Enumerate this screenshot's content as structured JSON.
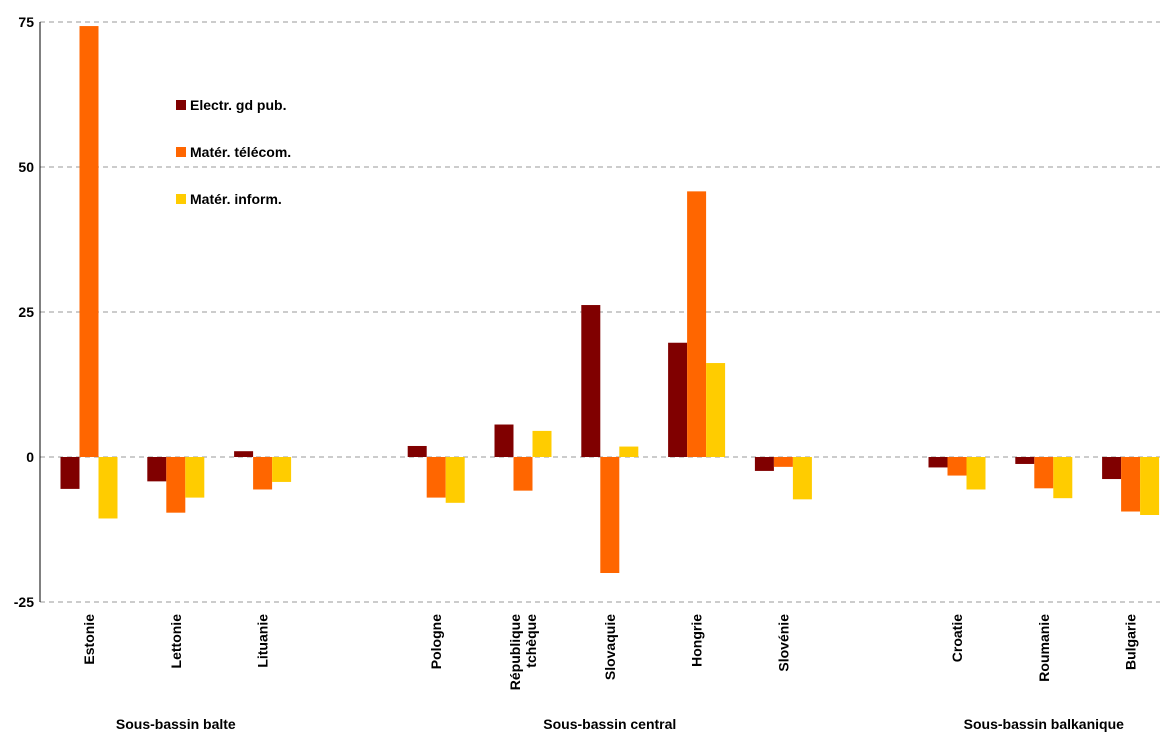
{
  "chart_data": {
    "type": "bar",
    "title": "",
    "xlabel": "",
    "ylabel": "",
    "ylim": [
      -25,
      75
    ],
    "yticks": [
      -25,
      0,
      25,
      50,
      75
    ],
    "grid": true,
    "legend_position": "top-left",
    "categories": [
      [
        "Estonie"
      ],
      [
        "Lettonie"
      ],
      [
        "Lituanie"
      ],
      [
        "Pologne"
      ],
      [
        "République",
        "tchèque"
      ],
      [
        "Slovaquie"
      ],
      [
        "Hongrie"
      ],
      [
        "Slovénie"
      ],
      [
        "Croatie"
      ],
      [
        "Roumanie"
      ],
      [
        "Bulgarie"
      ]
    ],
    "groups": [
      {
        "label": "Sous-bassin balte",
        "categories": [
          0,
          1,
          2
        ]
      },
      {
        "label": "Sous-bassin central",
        "categories": [
          3,
          4,
          5,
          6,
          7
        ]
      },
      {
        "label": "Sous-bassin balkanique",
        "categories": [
          8,
          9,
          10
        ]
      }
    ],
    "series": [
      {
        "name": "Electr. gd pub.",
        "color": "#800000",
        "values": [
          -5.5,
          -4.2,
          1.0,
          1.9,
          5.6,
          26.2,
          19.7,
          -2.4,
          -1.8,
          -1.2,
          -3.8
        ]
      },
      {
        "name": "Matér. télécom.",
        "color": "#FF6600",
        "values": [
          74.3,
          -9.6,
          -5.6,
          -7.0,
          -5.8,
          -20.0,
          45.8,
          -1.7,
          -3.2,
          -5.4,
          -9.4
        ]
      },
      {
        "name": "Matér. inform.",
        "color": "#FFCC00",
        "values": [
          -10.6,
          -7.0,
          -4.3,
          -7.9,
          4.5,
          1.8,
          16.2,
          -7.3,
          -5.6,
          -7.1,
          -10.0
        ]
      }
    ]
  }
}
